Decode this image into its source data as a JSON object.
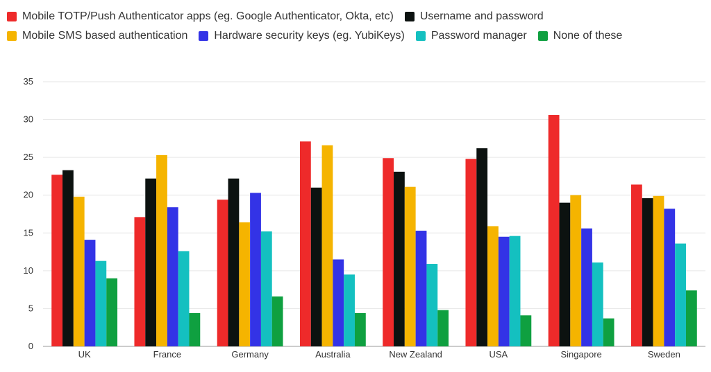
{
  "chart_data": {
    "type": "bar",
    "categories": [
      "UK",
      "France",
      "Germany",
      "Australia",
      "New Zealand",
      "USA",
      "Singapore",
      "Sweden"
    ],
    "series": [
      {
        "name": "Mobile TOTP/Push Authenticator apps (eg. Google Authenticator, Okta, etc)",
        "color": "#ee2a2a",
        "values": [
          22.7,
          17.1,
          19.4,
          27.1,
          24.9,
          24.8,
          30.6,
          21.4
        ]
      },
      {
        "name": "Username and password",
        "color": "#0c1210",
        "values": [
          23.3,
          22.2,
          22.2,
          21.0,
          23.1,
          26.2,
          19.0,
          19.6
        ]
      },
      {
        "name": "Mobile SMS based authentication",
        "color": "#f5b400",
        "values": [
          19.8,
          25.3,
          16.4,
          26.6,
          21.1,
          15.9,
          20.0,
          19.9
        ]
      },
      {
        "name": "Hardware security keys (eg. YubiKeys)",
        "color": "#3333e6",
        "values": [
          14.1,
          18.4,
          20.3,
          11.5,
          15.3,
          14.5,
          15.6,
          18.2
        ]
      },
      {
        "name": "Password manager",
        "color": "#14c0c0",
        "values": [
          11.3,
          12.6,
          15.2,
          9.5,
          10.9,
          14.6,
          11.1,
          13.6
        ]
      },
      {
        "name": "None of these",
        "color": "#0fa040",
        "values": [
          9.0,
          4.4,
          6.6,
          4.4,
          4.8,
          4.1,
          3.7,
          7.4
        ]
      }
    ],
    "yticks": [
      0,
      5,
      10,
      15,
      20,
      25,
      30,
      35
    ],
    "ylim": [
      0,
      35
    ],
    "grid": true,
    "legend_position": "top",
    "title": "",
    "xlabel": "",
    "ylabel": ""
  }
}
